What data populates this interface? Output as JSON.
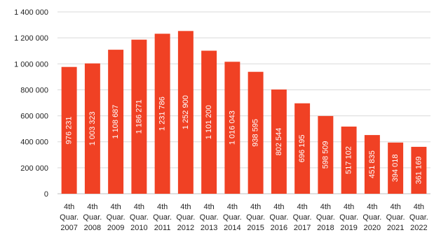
{
  "chart_data": {
    "type": "bar",
    "categories": [
      [
        "4th",
        "Quar.",
        "2007"
      ],
      [
        "4th",
        "Quar.",
        "2008"
      ],
      [
        "4th",
        "Quar.",
        "2009"
      ],
      [
        "4th",
        "Quar.",
        "2010"
      ],
      [
        "4th",
        "Quar.",
        "2011"
      ],
      [
        "4th",
        "Quar.",
        "2012"
      ],
      [
        "4th",
        "Quar.",
        "2013"
      ],
      [
        "4th",
        "Quar.",
        "2014"
      ],
      [
        "4th",
        "Quar.",
        "2015"
      ],
      [
        "4th",
        "Quar.",
        "2016"
      ],
      [
        "4th",
        "Quar.",
        "2017"
      ],
      [
        "4th",
        "Quar.",
        "2018"
      ],
      [
        "4th",
        "Quar.",
        "2019"
      ],
      [
        "4th",
        "Quar.",
        "2020"
      ],
      [
        "4th",
        "Quar.",
        "2021"
      ],
      [
        "4th",
        "Quar.",
        "2022"
      ]
    ],
    "values": [
      976231,
      1003323,
      1108687,
      1186271,
      1231786,
      1252900,
      1101200,
      1016043,
      938595,
      802544,
      696195,
      598509,
      517102,
      451835,
      394018,
      361169
    ],
    "data_labels": [
      "976 231",
      "1 003 323",
      "1 108 687",
      "1 186 271",
      "1 231 786",
      "1 252 900",
      "1 101 200",
      "1 016 043",
      "938 595",
      "802 544",
      "696 195",
      "598 509",
      "517 102",
      "451 835",
      "394 018",
      "361 169"
    ],
    "ylim": [
      0,
      1400000
    ],
    "yticks": [
      0,
      200000,
      400000,
      600000,
      800000,
      1000000,
      1200000,
      1400000
    ],
    "ytick_labels": [
      "0",
      "200 000",
      "400 000",
      "600 000",
      "800 000",
      "1 000 000",
      "1 200 000",
      "1 400 000"
    ],
    "grid": true,
    "bar_color": "#f04124",
    "title": "",
    "xlabel": "",
    "ylabel": ""
  }
}
